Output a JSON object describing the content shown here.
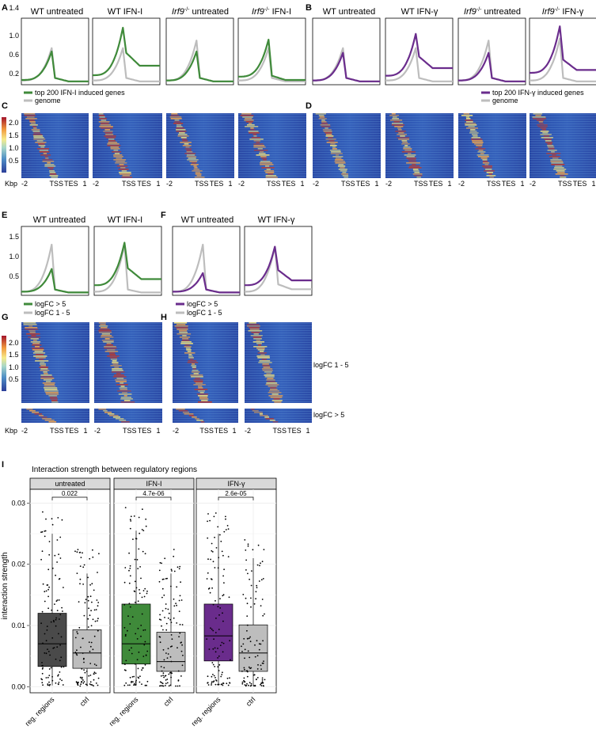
{
  "panel_letters": [
    "A",
    "B",
    "C",
    "D",
    "E",
    "F",
    "G",
    "H",
    "I"
  ],
  "profile_titles_A": [
    "WT untreated",
    "WT IFN-I",
    "untreated",
    "IFN-I"
  ],
  "profile_titles_B": [
    "WT untreated",
    "WT IFN-γ",
    "untreated",
    "IFN-γ"
  ],
  "irf9_prefix": "Irf9",
  "irf9_sup": "-/-",
  "profile_titles_E": [
    "WT untreated",
    "WT IFN-I"
  ],
  "profile_titles_F": [
    "WT untreated",
    "WT IFN-γ"
  ],
  "legend_A": [
    "top 200 IFN-I induced genes",
    "genome"
  ],
  "legend_B": [
    "top 200 IFN-γ induced genes",
    "genome"
  ],
  "legend_E": [
    "logFC > 5",
    "logFC 1 - 5"
  ],
  "legend_F": [
    "logFC > 5",
    "logFC 1 - 5"
  ],
  "heatmap_x_ticks": [
    "-2",
    "TSS",
    "TES",
    "1"
  ],
  "heatmap_unit": "Kbp",
  "row_labels_H": [
    "logFC 1 - 5",
    "logFC > 5"
  ],
  "colors": {
    "green": "#3f8a3a",
    "purple": "#6a2c8c",
    "grey": "#bdbdbd",
    "dark": "#4a4a4a"
  },
  "colorbar": {
    "ticks": [
      "2.0",
      "1.5",
      "1.0",
      "0.5"
    ],
    "ticks_G": [
      "2.0",
      "1.5",
      "1.0",
      "0.5"
    ]
  },
  "chart_data": [
    {
      "type": "line",
      "panel": "A/B/E/F profiles",
      "yticks_AB": [
        "1.4",
        "1.0",
        "0.6",
        "0.2"
      ],
      "ylim_AB": [
        0.05,
        1.45
      ],
      "yticks_EF": [
        "1.5",
        "1.0",
        "0.5"
      ],
      "ylim_EF": [
        0.05,
        1.75
      ],
      "series": [
        {
          "name": "top 200 IFN-I induced genes",
          "color": "green"
        },
        {
          "name": "genome",
          "color": "grey"
        }
      ],
      "profiles": [
        {
          "id": "A1",
          "fg": "green",
          "fg_base": 0.15,
          "fg_peak": 0.75,
          "fg_tail": 0.12,
          "bg_base": 0.14,
          "bg_peak": 0.82,
          "bg_tail": 0.12
        },
        {
          "id": "A2",
          "fg": "green",
          "fg_base": 0.25,
          "fg_peak": 1.25,
          "fg_tail": 0.45,
          "bg_base": 0.14,
          "bg_peak": 0.82,
          "bg_tail": 0.12
        },
        {
          "id": "A3",
          "fg": "green",
          "fg_base": 0.14,
          "fg_peak": 0.75,
          "fg_tail": 0.12,
          "bg_base": 0.14,
          "bg_peak": 0.98,
          "bg_tail": 0.12
        },
        {
          "id": "A4",
          "fg": "green",
          "fg_base": 0.22,
          "fg_peak": 1.0,
          "fg_tail": 0.15,
          "bg_base": 0.14,
          "bg_peak": 0.82,
          "bg_tail": 0.12
        },
        {
          "id": "B1",
          "fg": "purple",
          "fg_base": 0.14,
          "fg_peak": 0.72,
          "fg_tail": 0.12,
          "bg_base": 0.14,
          "bg_peak": 0.82,
          "bg_tail": 0.12
        },
        {
          "id": "B2",
          "fg": "purple",
          "fg_base": 0.24,
          "fg_peak": 1.12,
          "fg_tail": 0.4,
          "bg_base": 0.14,
          "bg_peak": 0.82,
          "bg_tail": 0.12
        },
        {
          "id": "B3",
          "fg": "purple",
          "fg_base": 0.14,
          "fg_peak": 0.72,
          "fg_tail": 0.12,
          "bg_base": 0.14,
          "bg_peak": 0.98,
          "bg_tail": 0.12
        },
        {
          "id": "B4",
          "fg": "purple",
          "fg_base": 0.3,
          "fg_peak": 1.28,
          "fg_tail": 0.36,
          "bg_base": 0.14,
          "bg_peak": 1.02,
          "bg_tail": 0.12
        },
        {
          "id": "E1",
          "fg": "green",
          "fg_base": 0.14,
          "fg_peak": 0.7,
          "fg_tail": 0.12,
          "bg_base": 0.14,
          "bg_peak": 1.3,
          "bg_tail": 0.12
        },
        {
          "id": "E2",
          "fg": "green",
          "fg_base": 0.3,
          "fg_peak": 1.35,
          "fg_tail": 0.45,
          "bg_base": 0.14,
          "bg_peak": 1.3,
          "bg_tail": 0.12
        },
        {
          "id": "F1",
          "fg": "purple",
          "fg_base": 0.14,
          "fg_peak": 0.6,
          "fg_tail": 0.12,
          "bg_base": 0.14,
          "bg_peak": 1.3,
          "bg_tail": 0.12
        },
        {
          "id": "F2",
          "fg": "purple",
          "fg_base": 0.3,
          "fg_peak": 1.25,
          "fg_tail": 0.42,
          "bg_base": 0.14,
          "bg_peak": 1.25,
          "bg_tail": 0.2
        }
      ]
    },
    {
      "type": "box",
      "panel": "I",
      "title": "Interaction strength between regulatory regions",
      "ylabel": "interaction strength",
      "ylim": [
        -0.001,
        0.032
      ],
      "yticks": [
        0.0,
        0.01,
        0.02,
        0.03
      ],
      "ytick_labels": [
        "0.00",
        "0.01",
        "0.02",
        "0.03"
      ],
      "categories": [
        "reg. regions",
        "ctrl"
      ],
      "facets": [
        {
          "name": "untreated",
          "pvalue": "0.022",
          "boxes": [
            {
              "color": "dark",
              "q1": 0.0033,
              "median": 0.007,
              "q3": 0.012,
              "lo": 0.0002,
              "hi": 0.025
            },
            {
              "color": "grey",
              "q1": 0.003,
              "median": 0.0055,
              "q3": 0.0093,
              "lo": 0.0001,
              "hi": 0.0185
            }
          ]
        },
        {
          "name": "IFN-I",
          "pvalue": "4.7e-06",
          "boxes": [
            {
              "color": "green",
              "q1": 0.0037,
              "median": 0.007,
              "q3": 0.0135,
              "lo": 0.0002,
              "hi": 0.0255
            },
            {
              "color": "grey",
              "q1": 0.0025,
              "median": 0.0041,
              "q3": 0.0089,
              "lo": 0.0001,
              "hi": 0.0185
            }
          ]
        },
        {
          "name": "IFN-γ",
          "pvalue": "2.6e-05",
          "boxes": [
            {
              "color": "purple",
              "q1": 0.0042,
              "median": 0.0083,
              "q3": 0.0135,
              "lo": 0.0002,
              "hi": 0.025
            },
            {
              "color": "grey",
              "q1": 0.0025,
              "median": 0.0055,
              "q3": 0.0101,
              "lo": 0.0001,
              "hi": 0.021
            }
          ]
        }
      ]
    }
  ]
}
